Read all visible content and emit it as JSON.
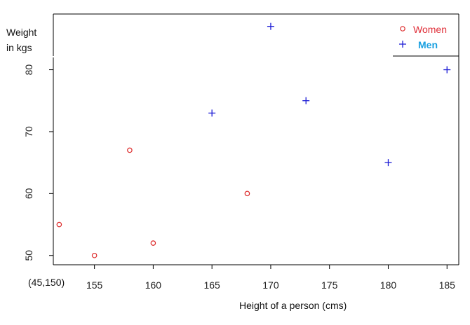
{
  "chart_data": {
    "type": "scatter",
    "xlabel": "Height of a person (cms)",
    "ylabel_lines": [
      "Weight",
      "in kgs"
    ],
    "origin_label": "(45,150)",
    "xlim": [
      151.5,
      186
    ],
    "ylim": [
      48.5,
      89
    ],
    "x_ticks": [
      155,
      160,
      165,
      170,
      175,
      180,
      185
    ],
    "y_ticks": [
      50,
      60,
      70,
      80
    ],
    "grid": false,
    "legend_position": "top-right",
    "series": [
      {
        "name": "Women",
        "marker": "circle",
        "color": "#dd2a2a",
        "label_color": "#e0303a",
        "points": [
          [
            152,
            55
          ],
          [
            155,
            50
          ],
          [
            158,
            67
          ],
          [
            160,
            52
          ],
          [
            168,
            60
          ]
        ]
      },
      {
        "name": "Men",
        "marker": "plus",
        "color": "#1f1fd6",
        "label_color": "#1aa0e0",
        "points": [
          [
            165,
            73
          ],
          [
            170,
            87
          ],
          [
            173,
            75
          ],
          [
            180,
            65
          ],
          [
            185,
            80
          ]
        ]
      }
    ]
  }
}
